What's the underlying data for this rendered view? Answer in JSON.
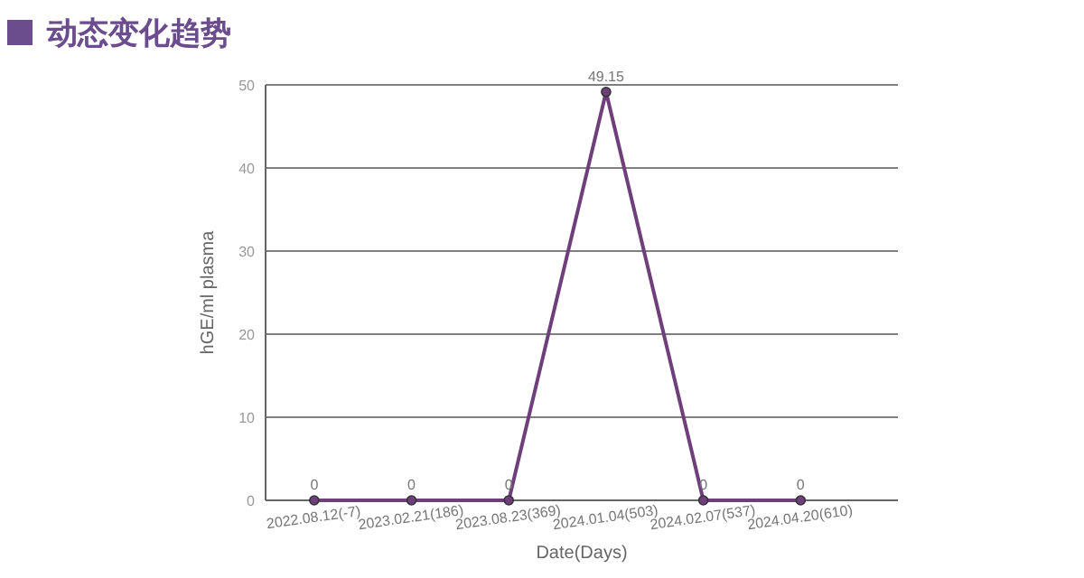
{
  "chart_data": {
    "type": "line",
    "title": "动态变化趋势",
    "xlabel": "Date(Days)",
    "ylabel": "hGE/ml plasma",
    "categories": [
      "2022.08.12(-7)",
      "2023.02.21(186)",
      "2023.08.23(369)",
      "2024.01.04(503)",
      "2024.02.07(537)",
      "2024.04.20(610)"
    ],
    "series": [
      {
        "color": "#6e3f7a",
        "values": [
          0,
          0,
          0,
          49.15,
          0,
          0
        ]
      }
    ],
    "ylim": [
      0,
      50
    ],
    "yticks": [
      0,
      10,
      20,
      30,
      40,
      50
    ],
    "grid": "y",
    "data_labels": true,
    "marker": "circle",
    "line_style": "solid"
  }
}
